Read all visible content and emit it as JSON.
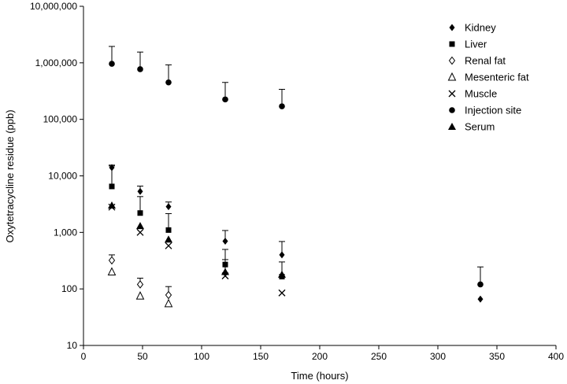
{
  "chart_data": {
    "type": "scatter",
    "xlabel": "Time (hours)",
    "ylabel": "Oxytetracycline residue (ppb)",
    "xlim": [
      0,
      400
    ],
    "ylim": [
      10,
      10000000
    ],
    "yscale": "log",
    "x_ticks": [
      0,
      50,
      100,
      150,
      200,
      250,
      300,
      350,
      400
    ],
    "x_tick_labels": [
      "0",
      "50",
      "100",
      "150",
      "200",
      "250",
      "300",
      "350",
      "400"
    ],
    "y_ticks": [
      10,
      100,
      1000,
      10000,
      100000,
      1000000,
      10000000
    ],
    "y_tick_labels": [
      "10",
      "100",
      "1,000",
      "10,000",
      "100,000",
      "1,000,000",
      "10,000,000"
    ],
    "grid": false,
    "legend_position": "top-right",
    "series": [
      {
        "name": "Kidney",
        "marker": "diamond",
        "points": [
          {
            "x": 24,
            "y": 14000,
            "err": 15500
          },
          {
            "x": 48,
            "y": 5300,
            "err": 6600
          },
          {
            "x": 72,
            "y": 2850,
            "err": 3450
          },
          {
            "x": 120,
            "y": 700,
            "err": 1080
          },
          {
            "x": 168,
            "y": 400,
            "err": 690
          },
          {
            "x": 336,
            "y": 66
          }
        ]
      },
      {
        "name": "Liver",
        "marker": "square",
        "points": [
          {
            "x": 24,
            "y": 6500,
            "err": 15000
          },
          {
            "x": 48,
            "y": 2200,
            "err": 4300
          },
          {
            "x": 72,
            "y": 1100,
            "err": 2150
          },
          {
            "x": 120,
            "y": 270,
            "err": 500
          },
          {
            "x": 168,
            "y": 165
          }
        ]
      },
      {
        "name": "Renal fat",
        "marker": "diamond-open",
        "points": [
          {
            "x": 24,
            "y": 320,
            "err": 400
          },
          {
            "x": 48,
            "y": 120,
            "err": 155
          },
          {
            "x": 72,
            "y": 78,
            "err": 110
          }
        ]
      },
      {
        "name": "Mesenteric fat",
        "marker": "triangle-open",
        "points": [
          {
            "x": 24,
            "y": 200
          },
          {
            "x": 48,
            "y": 75
          },
          {
            "x": 72,
            "y": 55
          }
        ]
      },
      {
        "name": "Muscle",
        "marker": "cross",
        "points": [
          {
            "x": 24,
            "y": 2800
          },
          {
            "x": 48,
            "y": 1000
          },
          {
            "x": 72,
            "y": 580
          },
          {
            "x": 120,
            "y": 170
          },
          {
            "x": 168,
            "y": 85
          }
        ]
      },
      {
        "name": "Injection site",
        "marker": "circle",
        "points": [
          {
            "x": 24,
            "y": 960000,
            "err": 1950000
          },
          {
            "x": 48,
            "y": 770000,
            "err": 1550000
          },
          {
            "x": 72,
            "y": 450000,
            "err": 920000
          },
          {
            "x": 120,
            "y": 225000,
            "err": 450000
          },
          {
            "x": 168,
            "y": 170000,
            "err": 340000
          },
          {
            "x": 336,
            "y": 120,
            "err": 245
          }
        ]
      },
      {
        "name": "Serum",
        "marker": "triangle",
        "points": [
          {
            "x": 24,
            "y": 3000
          },
          {
            "x": 48,
            "y": 1300
          },
          {
            "x": 72,
            "y": 750
          },
          {
            "x": 120,
            "y": 200,
            "err": 330
          },
          {
            "x": 168,
            "y": 180,
            "err": 300
          }
        ]
      }
    ]
  }
}
